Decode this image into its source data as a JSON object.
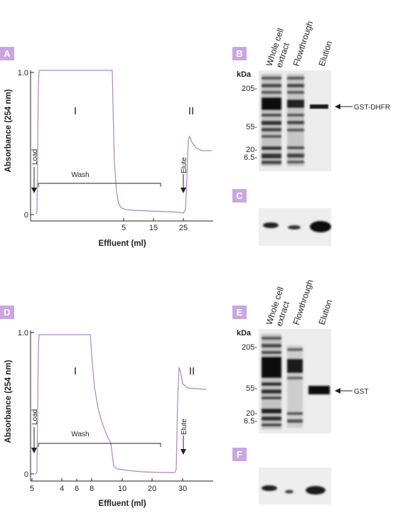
{
  "panels": {
    "A": "A",
    "B": "B",
    "C": "C",
    "D": "D",
    "E": "E",
    "F": "F"
  },
  "chart_data": [
    {
      "type": "line",
      "panel": "A",
      "ylabel": "Absorbance (254 nm)",
      "xlabel": "Effluent (ml)",
      "y_ticks": [
        "1.0",
        "0"
      ],
      "x_ticks": [
        "5",
        "15",
        "25"
      ],
      "regions": [
        "I",
        "II"
      ],
      "annotations": {
        "load": "Load",
        "wash": "Wash",
        "elute": "Elute"
      }
    },
    {
      "type": "line",
      "panel": "D",
      "ylabel": "Absorbance (254 nm)",
      "xlabel": "Effluent (ml)",
      "y_ticks": [
        "1.0",
        "0"
      ],
      "x_ticks": [
        "5",
        "4",
        "6",
        "8",
        "10",
        "20",
        "30"
      ],
      "regions": [
        "I",
        "II"
      ],
      "annotations": {
        "load": "Load",
        "wash": "Wash",
        "elute": "Elute"
      }
    }
  ],
  "gel_top": {
    "lanes": {
      "lane1a": "Whole cell",
      "lane1b": "extract",
      "lane2": "Flowthrough",
      "lane3": "Elution"
    },
    "kda_title": "kDa",
    "markers": [
      "205-",
      "55-",
      "20-",
      "6.5-"
    ],
    "protein_label": "GST-DHFR"
  },
  "gel_bottom": {
    "lanes": {
      "lane1a": "Whole cell",
      "lane1b": "extract",
      "lane2": "Flowthrough",
      "lane3": "Elution"
    },
    "kda_title": "kDa",
    "markers": [
      "205-",
      "55-",
      "20-",
      "6.5-"
    ],
    "protein_label": "GST"
  },
  "colors": {
    "badge": "#c9a6e0",
    "trace": "#a886c9",
    "ink": "#231f20"
  }
}
